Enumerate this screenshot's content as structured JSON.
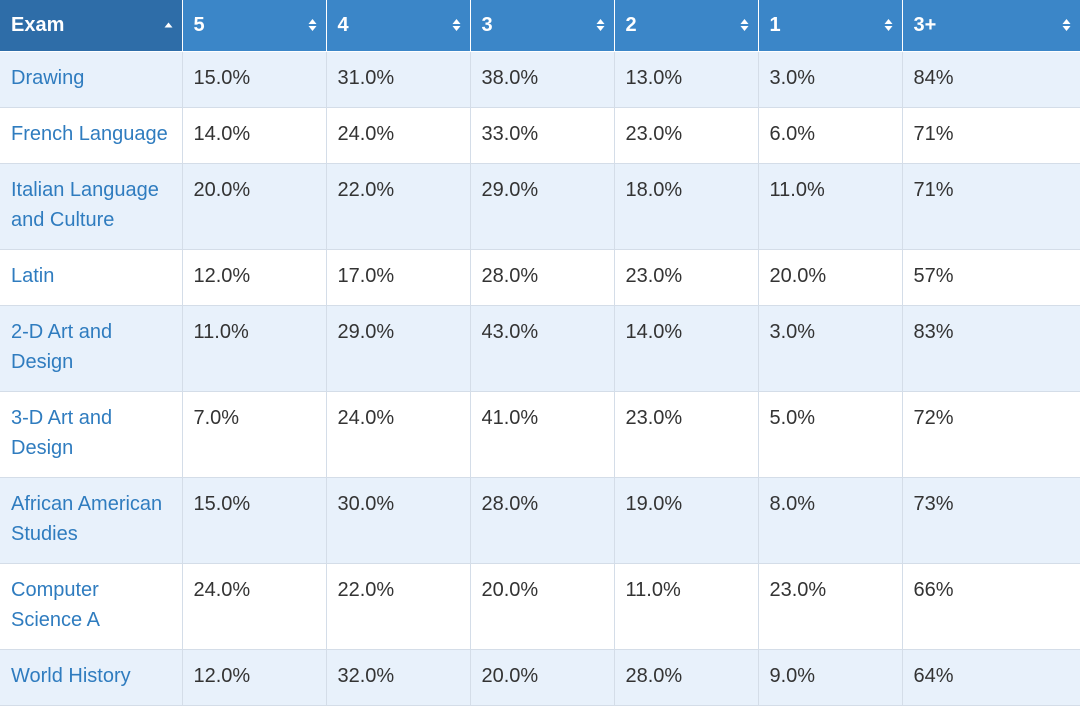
{
  "table": {
    "headers": [
      {
        "label": "Exam",
        "sort": "asc"
      },
      {
        "label": "5",
        "sort": "both"
      },
      {
        "label": "4",
        "sort": "both"
      },
      {
        "label": "3",
        "sort": "both"
      },
      {
        "label": "2",
        "sort": "both"
      },
      {
        "label": "1",
        "sort": "both"
      },
      {
        "label": "3+",
        "sort": "both"
      }
    ],
    "rows": [
      {
        "exam": "Drawing",
        "s5": "15.0%",
        "s4": "31.0%",
        "s3": "38.0%",
        "s2": "13.0%",
        "s1": "3.0%",
        "s3plus": "84%"
      },
      {
        "exam": "French Language",
        "s5": "14.0%",
        "s4": "24.0%",
        "s3": "33.0%",
        "s2": "23.0%",
        "s1": "6.0%",
        "s3plus": "71%"
      },
      {
        "exam": "Italian Language and Culture",
        "s5": "20.0%",
        "s4": "22.0%",
        "s3": "29.0%",
        "s2": "18.0%",
        "s1": "11.0%",
        "s3plus": "71%"
      },
      {
        "exam": "Latin",
        "s5": "12.0%",
        "s4": "17.0%",
        "s3": "28.0%",
        "s2": "23.0%",
        "s1": "20.0%",
        "s3plus": "57%"
      },
      {
        "exam": "2-D Art and Design",
        "s5": "11.0%",
        "s4": "29.0%",
        "s3": "43.0%",
        "s2": "14.0%",
        "s1": "3.0%",
        "s3plus": "83%"
      },
      {
        "exam": "3-D Art and Design",
        "s5": "7.0%",
        "s4": "24.0%",
        "s3": "41.0%",
        "s2": "23.0%",
        "s1": "5.0%",
        "s3plus": "72%"
      },
      {
        "exam": "African American Studies",
        "s5": "15.0%",
        "s4": "30.0%",
        "s3": "28.0%",
        "s2": "19.0%",
        "s1": "8.0%",
        "s3plus": "73%"
      },
      {
        "exam": "Computer Science A",
        "s5": "24.0%",
        "s4": "22.0%",
        "s3": "20.0%",
        "s2": "11.0%",
        "s1": "23.0%",
        "s3plus": "66%"
      },
      {
        "exam": "World History",
        "s5": "12.0%",
        "s4": "32.0%",
        "s3": "20.0%",
        "s2": "28.0%",
        "s1": "9.0%",
        "s3plus": "64%"
      }
    ]
  },
  "colors": {
    "header_bg": "#3b86c8",
    "header_sorted_bg": "#2e6da8",
    "row_alt_bg": "#e8f1fb",
    "link_text": "#2f7cbf"
  },
  "icons": {
    "sort_both": "sort-both-icon",
    "sort_asc": "sort-asc-icon"
  }
}
